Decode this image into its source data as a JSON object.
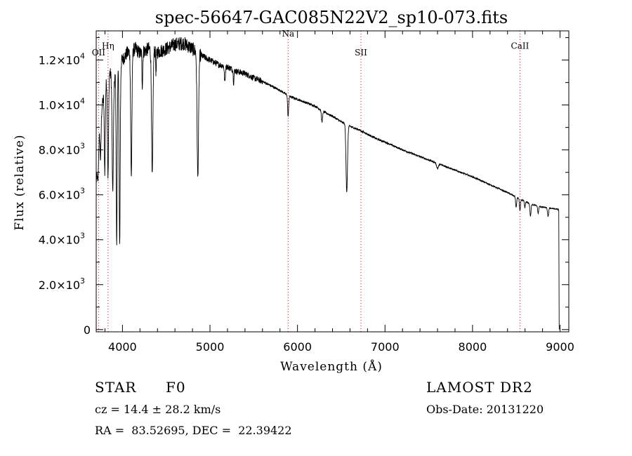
{
  "chart_data": {
    "type": "line",
    "title": "spec-56647-GAC085N22V2_sp10-073.fits",
    "xlabel": "Wavelength (Å)",
    "ylabel": "Flux (relative)",
    "xlim": [
      3700,
      9100
    ],
    "ylim": [
      -100,
      13300
    ],
    "x_ticks": [
      {
        "value": 4000,
        "label": "4000"
      },
      {
        "value": 5000,
        "label": "5000"
      },
      {
        "value": 6000,
        "label": "6000"
      },
      {
        "value": 7000,
        "label": "7000"
      },
      {
        "value": 8000,
        "label": "8000"
      },
      {
        "value": 9000,
        "label": "9000"
      }
    ],
    "y_ticks": [
      {
        "value": 0,
        "mant": "0",
        "exp": ""
      },
      {
        "value": 2000,
        "mant": "2.0×10",
        "exp": "3"
      },
      {
        "value": 4000,
        "mant": "4.0×10",
        "exp": "3"
      },
      {
        "value": 6000,
        "mant": "6.0×10",
        "exp": "3"
      },
      {
        "value": 8000,
        "mant": "8.0×10",
        "exp": "3"
      },
      {
        "value": 10000,
        "mant": "1.0×10",
        "exp": "4"
      },
      {
        "value": 12000,
        "mant": "1.2×10",
        "exp": "4"
      }
    ],
    "continuum": [
      [
        3700,
        6500
      ],
      [
        3750,
        9500
      ],
      [
        3800,
        10800
      ],
      [
        3850,
        11500
      ],
      [
        3900,
        11000
      ],
      [
        3950,
        11800
      ],
      [
        4000,
        12000
      ],
      [
        4050,
        12300
      ],
      [
        4100,
        12400
      ],
      [
        4150,
        12500
      ],
      [
        4200,
        12300
      ],
      [
        4300,
        12500
      ],
      [
        4400,
        12350
      ],
      [
        4500,
        12500
      ],
      [
        4600,
        12700
      ],
      [
        4700,
        12750
      ],
      [
        4800,
        12500
      ],
      [
        4900,
        12200
      ],
      [
        5000,
        12000
      ],
      [
        5100,
        11800
      ],
      [
        5200,
        11700
      ],
      [
        5300,
        11500
      ],
      [
        5400,
        11400
      ],
      [
        5500,
        11200
      ],
      [
        5600,
        11050
      ],
      [
        5700,
        10850
      ],
      [
        5800,
        10650
      ],
      [
        5900,
        10400
      ],
      [
        6000,
        10250
      ],
      [
        6100,
        10100
      ],
      [
        6200,
        9950
      ],
      [
        6300,
        9700
      ],
      [
        6400,
        9500
      ],
      [
        6500,
        9250
      ],
      [
        6600,
        9050
      ],
      [
        6700,
        8900
      ],
      [
        6800,
        8700
      ],
      [
        6900,
        8500
      ],
      [
        7000,
        8350
      ],
      [
        7200,
        8000
      ],
      [
        7400,
        7700
      ],
      [
        7600,
        7400
      ],
      [
        7800,
        7100
      ],
      [
        8000,
        6800
      ],
      [
        8200,
        6450
      ],
      [
        8400,
        6100
      ],
      [
        8500,
        5900
      ],
      [
        8600,
        5700
      ],
      [
        8700,
        5550
      ],
      [
        8800,
        5450
      ],
      [
        8900,
        5400
      ],
      [
        8980,
        5350
      ]
    ],
    "absorption_lines": [
      {
        "x": 3720,
        "depth": 0.15,
        "width": 8
      },
      {
        "x": 3750,
        "depth": 0.2,
        "width": 8
      },
      {
        "x": 3798,
        "depth": 0.35,
        "width": 8
      },
      {
        "x": 3835,
        "depth": 0.4,
        "width": 9
      },
      {
        "x": 3889,
        "depth": 0.45,
        "width": 10
      },
      {
        "x": 3934,
        "depth": 0.68,
        "width": 8
      },
      {
        "x": 3968,
        "depth": 0.68,
        "width": 9
      },
      {
        "x": 4101,
        "depth": 0.45,
        "width": 10
      },
      {
        "x": 4227,
        "depth": 0.12,
        "width": 6
      },
      {
        "x": 4340,
        "depth": 0.45,
        "width": 11
      },
      {
        "x": 4384,
        "depth": 0.08,
        "width": 5
      },
      {
        "x": 4861,
        "depth": 0.45,
        "width": 12
      },
      {
        "x": 5170,
        "depth": 0.06,
        "width": 8
      },
      {
        "x": 5270,
        "depth": 0.05,
        "width": 6
      },
      {
        "x": 5893,
        "depth": 0.09,
        "width": 8
      },
      {
        "x": 6280,
        "depth": 0.05,
        "width": 10
      },
      {
        "x": 6563,
        "depth": 0.33,
        "width": 12
      },
      {
        "x": 7600,
        "depth": 0.03,
        "width": 15
      },
      {
        "x": 8498,
        "depth": 0.08,
        "width": 8
      },
      {
        "x": 8542,
        "depth": 0.09,
        "width": 8
      },
      {
        "x": 8598,
        "depth": 0.05,
        "width": 7
      },
      {
        "x": 8662,
        "depth": 0.1,
        "width": 9
      },
      {
        "x": 8750,
        "depth": 0.06,
        "width": 8
      },
      {
        "x": 8863,
        "depth": 0.07,
        "width": 9
      }
    ],
    "reference_lines": [
      {
        "x": 3727,
        "label": "OII",
        "label_y": 12200
      },
      {
        "x": 3835,
        "label": "Hη",
        "label_y": 12500
      },
      {
        "x": 5893,
        "label": "Na",
        "label_y": 13050
      },
      {
        "x": 6725,
        "label": "SII",
        "label_y": 12200
      },
      {
        "x": 8542,
        "label": "CaII",
        "label_y": 12500
      }
    ],
    "grid": false,
    "legend": "none"
  },
  "info": {
    "class": "STAR",
    "subclass": "F0",
    "cz": "cz = 14.4 ± 28.2 km/s",
    "radec": "RA =  83.52695, DEC =  22.39422",
    "survey": "LAMOST DR2",
    "obsdate": "Obs-Date: 20131220"
  },
  "colors": {
    "spectrum": "#000000",
    "reference_line": "#ff0000",
    "axes": "#000000"
  }
}
